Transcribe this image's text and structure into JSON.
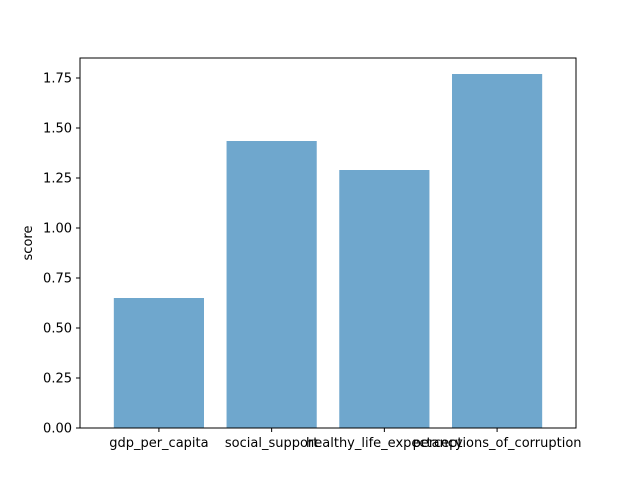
{
  "chart_data": {
    "type": "bar",
    "title": "",
    "xlabel": "",
    "ylabel": "score",
    "categories": [
      "gdp_per_capita",
      "social_support",
      "healthy_life_expectancy",
      "perceptions_of_corruption"
    ],
    "values": [
      0.65,
      1.435,
      1.29,
      1.77
    ],
    "ylim": [
      0,
      1.85
    ],
    "yticks": [
      0.0,
      0.25,
      0.5,
      0.75,
      1.0,
      1.25,
      1.5,
      1.75
    ],
    "ytick_labels": [
      "0.00",
      "0.25",
      "0.50",
      "0.75",
      "1.00",
      "1.25",
      "1.50",
      "1.75"
    ],
    "bar_color": "#6fa7cd",
    "grid": false,
    "legend": "none"
  }
}
